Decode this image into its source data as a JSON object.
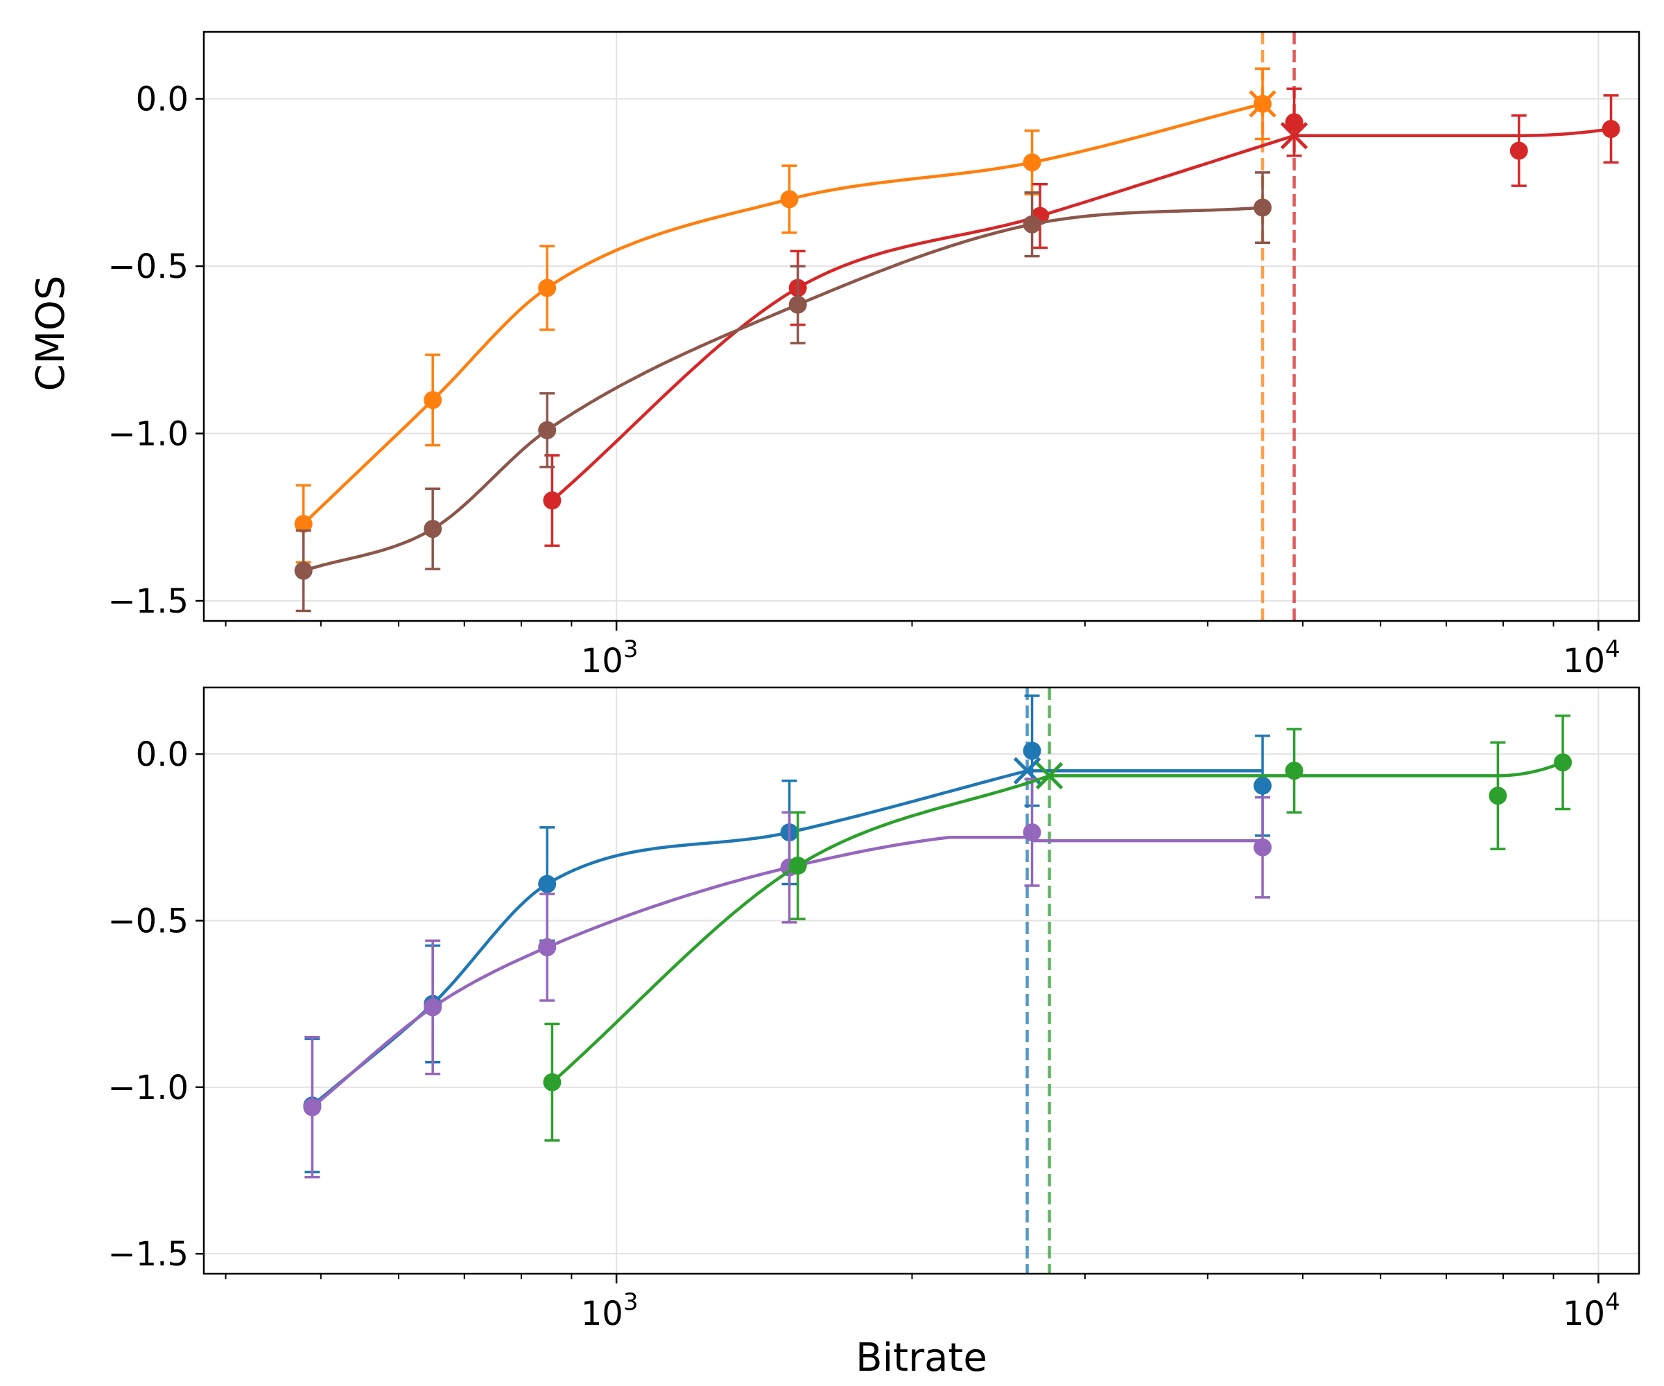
{
  "chart_data": [
    {
      "type": "line",
      "panel": "top",
      "xscale": "log",
      "xlim": [
        380,
        11000
      ],
      "ylim": [
        -1.56,
        0.2
      ],
      "xlabel": "",
      "ylabel": "CMOS",
      "grid": true,
      "yticks": [
        0.0,
        -0.5,
        -1.0,
        -1.5
      ],
      "ytick_labels": [
        "0.0",
        "−0.5",
        "−1.0",
        "−1.5"
      ],
      "xticks": [
        1000,
        10000
      ],
      "xtick_labels": [
        {
          "base": "10",
          "exp": "3"
        },
        {
          "base": "10",
          "exp": "4"
        }
      ],
      "series": [
        {
          "name": "orange",
          "color": "#ff7f0e",
          "x": [
            480,
            650,
            850,
            1500,
            2650,
            4550
          ],
          "y": [
            -1.27,
            -0.9,
            -0.565,
            -0.3,
            -0.19,
            -0.015
          ],
          "err": [
            0.115,
            0.135,
            0.125,
            0.1,
            0.095,
            0.105
          ],
          "knee": {
            "x": 4550,
            "y": -0.015
          }
        },
        {
          "name": "red",
          "color": "#d62728",
          "x": [
            860,
            1530,
            2700,
            4900,
            8300,
            10300
          ],
          "y": [
            -1.2,
            -0.565,
            -0.35,
            -0.07,
            -0.155,
            -0.09
          ],
          "err": [
            0.135,
            0.11,
            0.095,
            0.1,
            0.105,
            0.1
          ],
          "knee": {
            "x": 4900,
            "y": -0.11
          }
        },
        {
          "name": "brown",
          "color": "#8c564b",
          "x": [
            480,
            650,
            850,
            1530,
            2650,
            4550
          ],
          "y": [
            -1.41,
            -1.285,
            -0.99,
            -0.615,
            -0.375,
            -0.325
          ],
          "err": [
            0.12,
            0.12,
            0.11,
            0.115,
            0.095,
            0.105
          ]
        }
      ],
      "reference_lines": [
        {
          "x": 4550,
          "color": "#ff7f0e"
        },
        {
          "x": 4900,
          "color": "#d62728"
        }
      ]
    },
    {
      "type": "line",
      "panel": "bottom",
      "xscale": "log",
      "xlim": [
        380,
        11000
      ],
      "ylim": [
        -1.56,
        0.2
      ],
      "xlabel": "Bitrate",
      "ylabel": "",
      "grid": true,
      "yticks": [
        0.0,
        -0.5,
        -1.0,
        -1.5
      ],
      "ytick_labels": [
        "0.0",
        "−0.5",
        "−1.0",
        "−1.5"
      ],
      "xticks": [
        1000,
        10000
      ],
      "xtick_labels": [
        {
          "base": "10",
          "exp": "3"
        },
        {
          "base": "10",
          "exp": "4"
        }
      ],
      "series": [
        {
          "name": "blue",
          "color": "#1f77b4",
          "x": [
            490,
            650,
            850,
            1500,
            2650,
            4550
          ],
          "y": [
            -1.055,
            -0.75,
            -0.39,
            -0.235,
            0.01,
            -0.095
          ],
          "err": [
            0.2,
            0.175,
            0.17,
            0.155,
            0.165,
            0.15
          ],
          "knee": {
            "x": 2620,
            "y": -0.05
          }
        },
        {
          "name": "purple",
          "color": "#9467bd",
          "x": [
            490,
            650,
            850,
            1500,
            2650,
            4550
          ],
          "y": [
            -1.06,
            -0.76,
            -0.58,
            -0.34,
            -0.235,
            -0.28
          ],
          "err": [
            0.21,
            0.2,
            0.16,
            0.165,
            0.16,
            0.15
          ]
        },
        {
          "name": "green",
          "color": "#2ca02c",
          "x": [
            860,
            1530,
            4900,
            7900,
            9200
          ],
          "y": [
            -0.985,
            -0.335,
            -0.05,
            -0.125,
            -0.025
          ],
          "err": [
            0.175,
            0.16,
            0.125,
            0.16,
            0.14
          ],
          "knee": {
            "x": 2760,
            "y": -0.065
          }
        }
      ],
      "reference_lines": [
        {
          "x": 2620,
          "color": "#1f77b4"
        },
        {
          "x": 2760,
          "color": "#2ca02c"
        }
      ]
    }
  ]
}
